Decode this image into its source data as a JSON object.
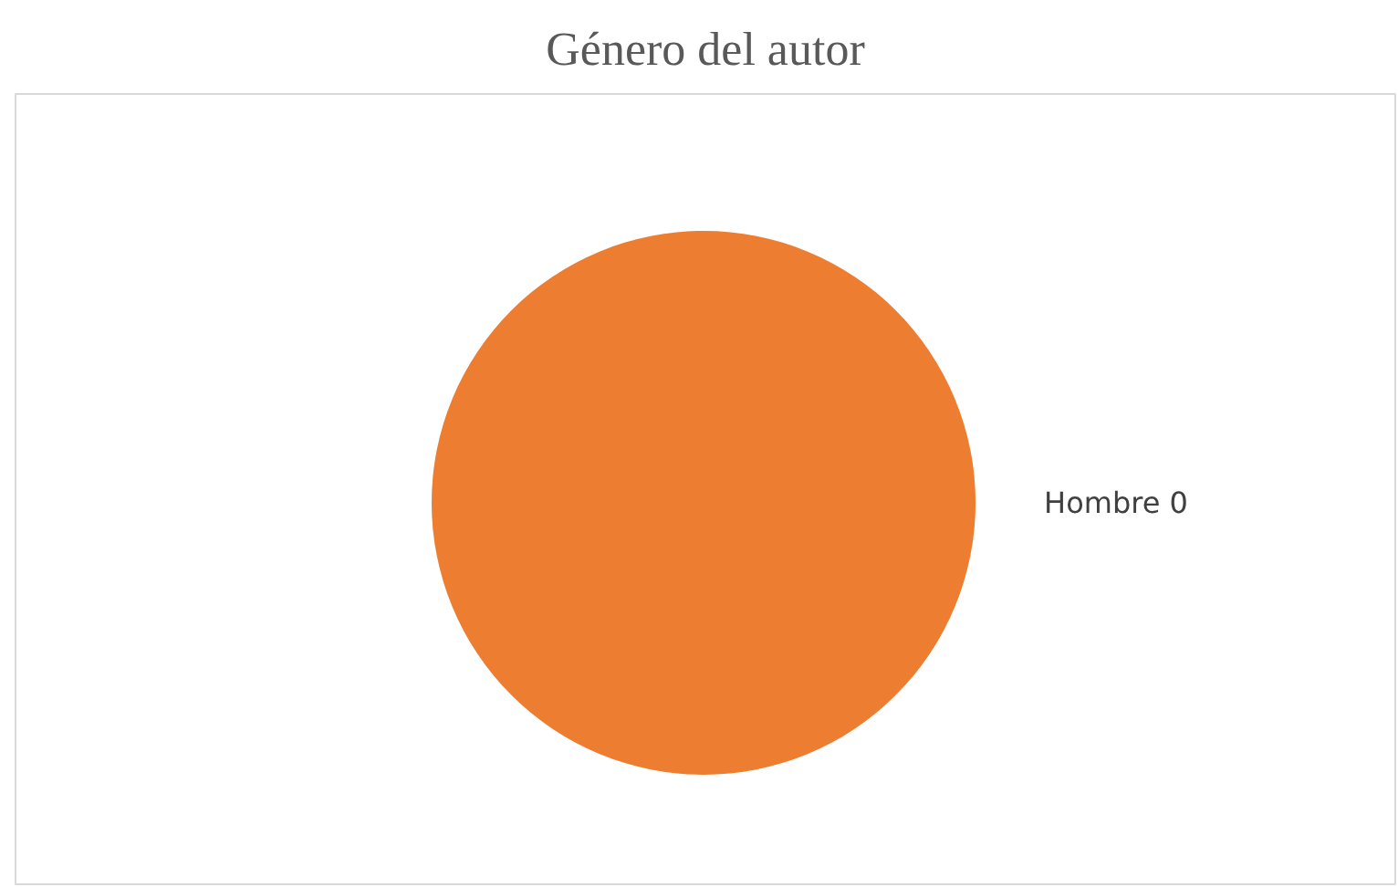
{
  "chart_data": {
    "type": "pie",
    "title": "Género del autor",
    "categories": [
      "Hombre",
      null
    ],
    "values": [
      0,
      100
    ],
    "colors": [
      "#4472c4",
      "#ed7d31"
    ],
    "value_labels": [
      "0",
      null
    ]
  }
}
